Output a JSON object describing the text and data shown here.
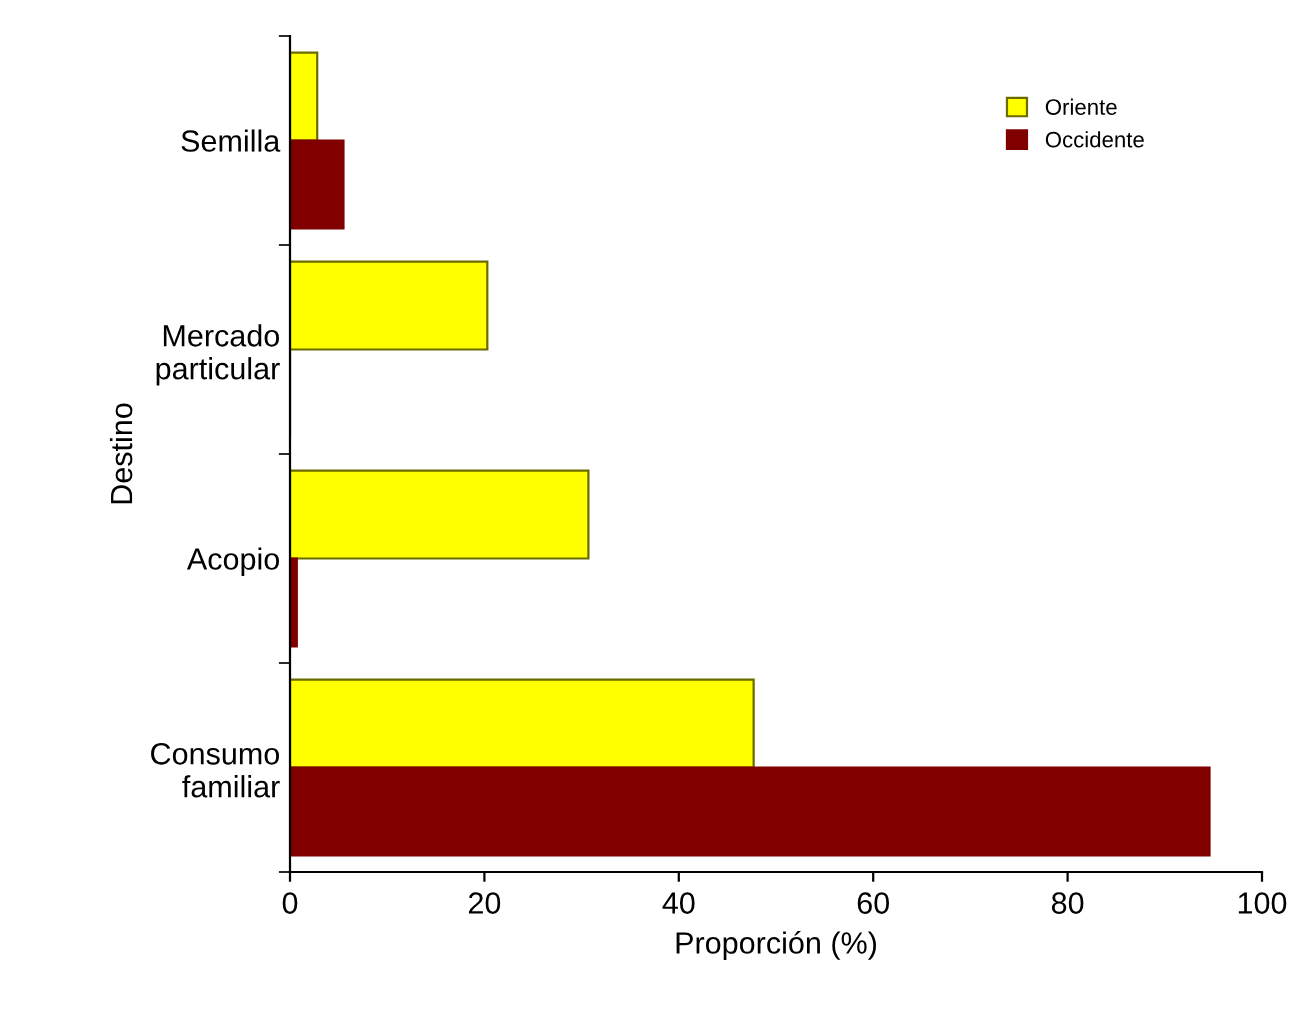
{
  "chart_data": {
    "type": "bar",
    "orientation": "horizontal",
    "xlabel": "Proporción (%)",
    "ylabel": "Destino",
    "categories": [
      "Semilla",
      "Mercado\nparticular",
      "Acopio",
      "Consumo\nfamiliar"
    ],
    "series": [
      {
        "name": "Oriente",
        "color": "#ffff00",
        "values": [
          2.8,
          20.3,
          30.7,
          47.7
        ]
      },
      {
        "name": "Occidente",
        "color": "#800000",
        "values": [
          5.5,
          0,
          0.7,
          94.6
        ]
      }
    ],
    "xlim": [
      0,
      100
    ],
    "xticks": [
      0,
      20,
      40,
      60,
      80,
      100
    ],
    "grid": false,
    "legend": "top right"
  }
}
